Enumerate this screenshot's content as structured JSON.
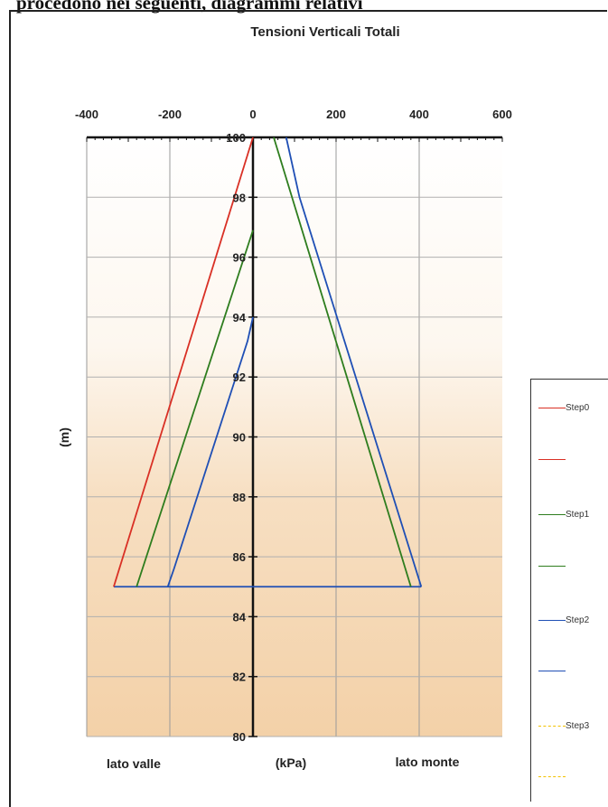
{
  "header_text": "procedono nei seguenti, diagrammi relativi",
  "chart_data": {
    "type": "line",
    "title": "Tensioni Verticali Totali",
    "xlabel": "(kPa)",
    "ylabel": "(m)",
    "left_side_label": "lato valle",
    "right_side_label": "lato monte",
    "xlim": [
      -400,
      600
    ],
    "ylim": [
      80,
      100
    ],
    "x_ticks": [
      -400,
      -200,
      0,
      200,
      400,
      600
    ],
    "y_ticks": [
      80,
      82,
      84,
      86,
      88,
      90,
      92,
      94,
      96,
      98,
      100
    ],
    "x_gridlines": [
      -400,
      -200,
      0,
      200,
      400
    ],
    "grid": true,
    "legend_placement": "right",
    "series": [
      {
        "name": "Step0",
        "color": "#d93025",
        "dashed": false,
        "valle": [
          {
            "x": 0,
            "y": 100
          },
          {
            "x": -335,
            "y": 85
          }
        ],
        "monte": []
      },
      {
        "name": "Step1",
        "color": "#2e7d1e",
        "dashed": false,
        "valle": [
          {
            "x": 0,
            "y": 96.9
          },
          {
            "x": -280,
            "y": 85
          }
        ],
        "monte": [
          {
            "x": 50,
            "y": 100
          },
          {
            "x": 380,
            "y": 85
          }
        ]
      },
      {
        "name": "Step2",
        "color": "#1f4fb5",
        "dashed": false,
        "valle": [
          {
            "x": 0,
            "y": 94
          },
          {
            "x": -13,
            "y": 93.2
          },
          {
            "x": -190,
            "y": 85.6
          },
          {
            "x": -205,
            "y": 85
          }
        ],
        "monte": [
          {
            "x": 80,
            "y": 100
          },
          {
            "x": 112,
            "y": 98
          },
          {
            "x": 405,
            "y": 85
          }
        ]
      },
      {
        "name": "Step3",
        "color": "#f2c200",
        "dashed": true,
        "valle": [],
        "monte": []
      }
    ],
    "legend_entries": [
      {
        "label": "Step0",
        "color": "#d93025",
        "dashed": false
      },
      {
        "label": "",
        "color": "#d93025",
        "dashed": false
      },
      {
        "label": "Step1",
        "color": "#2e7d1e",
        "dashed": false
      },
      {
        "label": "",
        "color": "#2e7d1e",
        "dashed": false
      },
      {
        "label": "Step2",
        "color": "#1f4fb5",
        "dashed": false
      },
      {
        "label": "",
        "color": "#1f4fb5",
        "dashed": false
      },
      {
        "label": "Step3",
        "color": "#f2c200",
        "dashed": true
      },
      {
        "label": "",
        "color": "#f2c200",
        "dashed": true
      }
    ]
  }
}
